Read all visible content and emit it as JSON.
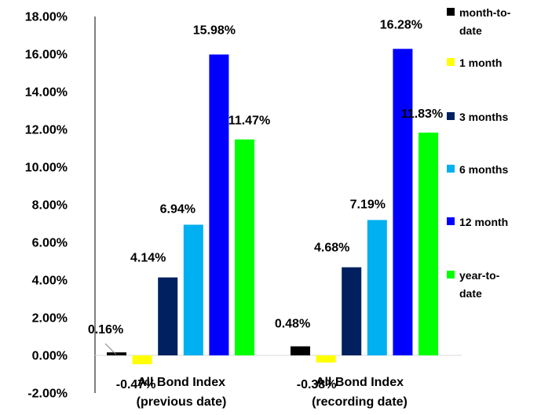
{
  "chart_data": {
    "type": "bar",
    "categories": [
      [
        "All Bond Index",
        "(previous date)"
      ],
      [
        "All Bond Index",
        "(recording date)"
      ]
    ],
    "series": [
      {
        "name": [
          "month-to-",
          "date"
        ],
        "color": "#000000",
        "values": [
          0.16,
          0.48
        ],
        "labels": [
          "0.16%",
          "0.48%"
        ]
      },
      {
        "name": [
          "1 month"
        ],
        "color": "#FFFF00",
        "values": [
          -0.47,
          -0.38
        ],
        "labels": [
          "-0.47%",
          "-0.38%"
        ]
      },
      {
        "name": [
          "3 months"
        ],
        "color": "#002060",
        "values": [
          4.14,
          4.68
        ],
        "labels": [
          "4.14%",
          "4.68%"
        ]
      },
      {
        "name": [
          "6 months"
        ],
        "color": "#00B0F0",
        "values": [
          6.94,
          7.19
        ],
        "labels": [
          "6.94%",
          "7.19%"
        ]
      },
      {
        "name": [
          "12 month"
        ],
        "color": "#0000FF",
        "values": [
          15.98,
          16.28
        ],
        "labels": [
          "15.98%",
          "16.28%"
        ]
      },
      {
        "name": [
          "year-to-",
          "date"
        ],
        "color": "#00FF00",
        "values": [
          11.47,
          11.83
        ],
        "labels": [
          "11.47%",
          "11.83%"
        ]
      }
    ],
    "ylim": [
      -2,
      18
    ],
    "yticks": [
      -2,
      0,
      2,
      4,
      6,
      8,
      10,
      12,
      14,
      16,
      18
    ],
    "ytick_labels": [
      "-2.00%",
      "0.00%",
      "2.00%",
      "4.00%",
      "6.00%",
      "8.00%",
      "10.00%",
      "12.00%",
      "14.00%",
      "16.00%",
      "18.00%"
    ],
    "grid": false,
    "legend": "right",
    "title": "",
    "xlabel": "",
    "ylabel": ""
  }
}
